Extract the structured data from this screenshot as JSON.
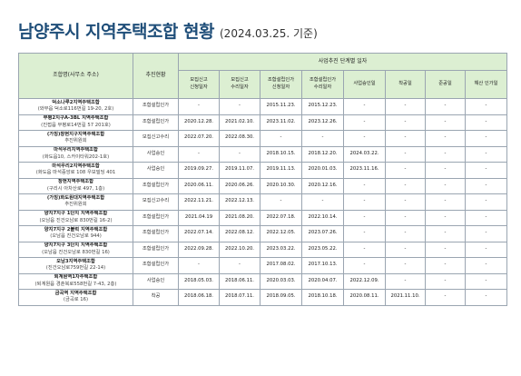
{
  "title": "남양주시 지역주택조합 현황",
  "subtitle": "(2024.03.25. 기준)",
  "header": {
    "col_name": "조합명(사무소 주소)",
    "col_status": "추진현황",
    "col_dates_group": "사업추진 단계별 일자",
    "stages": [
      [
        "모집신고",
        "신청일자"
      ],
      [
        "모집신고",
        "수리일자"
      ],
      [
        "조합설립인가",
        "신청일자"
      ],
      [
        "조합설립인가",
        "수리일자"
      ],
      [
        "사업승인일"
      ],
      [
        "착공일"
      ],
      [
        "준공일"
      ],
      [
        "해산 인가일"
      ]
    ]
  },
  "rows": [
    {
      "name": "덕소나루2지역주택조합",
      "addr": "(와부읍 덕소로116번길 19-20, 2호)",
      "status": "조합설립인가",
      "dates": [
        "-",
        "-",
        "2015.11.23.",
        "2015.12.23.",
        "-",
        "-",
        "-",
        "-"
      ]
    },
    {
      "name": "부평2지구A-3BL 지역주택조합",
      "addr": "(진접읍 부평로14번길 57 201호)",
      "status": "조합설립인가",
      "dates": [
        "2020.12.28.",
        "2021.02.10.",
        "2023.11.02.",
        "2023.12.26.",
        "-",
        "-",
        "-",
        "-"
      ]
    },
    {
      "name": "(가칭)창현지구지역주택조합",
      "addr": "추진위원회",
      "status": "모집신고수리",
      "dates": [
        "2022.07.20.",
        "2022.08.30.",
        "-",
        "-",
        "-",
        "-",
        "-",
        "-"
      ]
    },
    {
      "name": "마석우리지역주택조합",
      "addr": "(화도읍10, 스카이타워202-1호)",
      "status": "사업승인",
      "dates": [
        "-",
        "-",
        "2018.10.15.",
        "2018.12.20.",
        "2024.03.22.",
        "-",
        "-",
        "-"
      ]
    },
    {
      "name": "마석우리2지역주택조합",
      "addr": "(화도읍 마석중앙로 108 우보빌딩 401",
      "status": "사업승인",
      "dates": [
        "2019.09.27.",
        "2019.11.07.",
        "2019.11.13.",
        "2020.01.03.",
        "2023.11.16.",
        "-",
        "-",
        "-"
      ]
    },
    {
      "name": "창현지역주택조합",
      "addr": "(구리시 아차산로 497, 1층)",
      "status": "조합설립인가",
      "dates": [
        "2020.06.11.",
        "2020.06.26.",
        "2020.10.30.",
        "2020.12.16.",
        "-",
        "-",
        "-",
        "-"
      ]
    },
    {
      "name": "(가칭)화도원대지역주택조합",
      "addr": "추진위원회",
      "status": "모집신고수리",
      "dates": [
        "2022.11.21.",
        "2022.12.13.",
        "-",
        "-",
        "-",
        "-",
        "-",
        "-"
      ]
    },
    {
      "name": "양지7지구 1단지 지역주택조합",
      "addr": "(오남읍 진건오남로 830번길 16-2)",
      "status": "조합설립인가",
      "dates": [
        "2021.04.19",
        "2021.08.20.",
        "2022.07.18.",
        "2022.10.14.",
        "-",
        "-",
        "-",
        "-"
      ]
    },
    {
      "name": "양지7지구 2블럭 지역주택조합",
      "addr": "(오남읍 진건오남로 944)",
      "status": "조합설립인가",
      "dates": [
        "2022.07.14.",
        "2022.08.12.",
        "2022.12.05.",
        "2023.07.26.",
        "-",
        "-",
        "-",
        "-"
      ]
    },
    {
      "name": "양지7지구 3단지 지역주택조합",
      "addr": "(오남읍 진건오남로 830번길 16)",
      "status": "조합설립인가",
      "dates": [
        "2022.09.28.",
        "2022.10.20.",
        "2023.03.22.",
        "2023.05.22.",
        "-",
        "-",
        "-",
        "-"
      ]
    },
    {
      "name": "오남3지역주택조합",
      "addr": "(진건오남로759번길 22-14)",
      "status": "조합설립인가",
      "dates": [
        "-",
        "-",
        "2017.08.02.",
        "2017.10.13.",
        "-",
        "-",
        "-",
        "-"
      ]
    },
    {
      "name": "퇴계원역1차주택조합",
      "addr": "(퇴계원읍 경춘북로558번길 7-43, 2층)",
      "status": "사업승인",
      "dates": [
        "2018.05.03.",
        "2018.06.11.",
        "2020.03.03.",
        "2020.04.07.",
        "2022.12.09.",
        "-",
        "-",
        "-"
      ]
    },
    {
      "name": "금곡역 지역주택조합",
      "addr": "(금곡로 16)",
      "status": "착공",
      "dates": [
        "2018.06.18.",
        "2018.07.11.",
        "2018.09.05.",
        "2018.10.18.",
        "2020.08.11.",
        "2021.11.10.",
        "-",
        "-"
      ]
    }
  ]
}
